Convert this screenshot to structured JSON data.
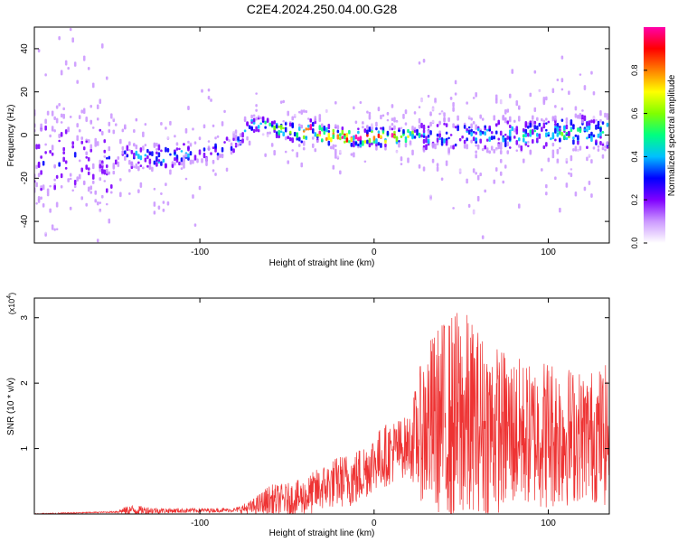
{
  "title": "C2E4.2024.250.04.00.G28",
  "chart_data": [
    {
      "type": "heatmap",
      "xlabel": "Height of straight line (km)",
      "ylabel": "Frequency (Hz)",
      "xlim": [
        -195,
        135
      ],
      "ylim": [
        -50,
        50
      ],
      "xticks": [
        -100,
        0,
        100
      ],
      "yticks": [
        -40,
        -20,
        0,
        20,
        40
      ],
      "colorbar": {
        "label": "Normalized spectral amplitude",
        "range": [
          0,
          1
        ],
        "ticks": [
          "0.0",
          "0.2",
          "0.4",
          "0.6",
          "0.8"
        ],
        "colors": [
          "#ffffff",
          "#cc99ff",
          "#8000ff",
          "#0000ff",
          "#00c0ff",
          "#00ff80",
          "#80ff00",
          "#ffff00",
          "#ff8000",
          "#ff0000",
          "#ff00aa"
        ]
      },
      "ridge": {
        "x": [
          -145,
          -120,
          -100,
          -80,
          -70,
          -60,
          -50,
          -42,
          -36,
          -30,
          -20,
          -10,
          0,
          10,
          20,
          30,
          50,
          80,
          110,
          135
        ],
        "y": [
          -10,
          -11,
          -8,
          -5,
          5,
          4,
          2,
          0,
          4,
          0,
          -1,
          -1,
          -1,
          -1,
          0,
          -1,
          0,
          0,
          1,
          1
        ],
        "peak_amplitude": [
          0.35,
          0.4,
          0.3,
          0.3,
          0.55,
          0.55,
          0.6,
          0.85,
          0.85,
          0.9,
          0.95,
          0.95,
          0.95,
          0.9,
          0.6,
          0.35,
          0.4,
          0.4,
          0.5,
          0.5
        ]
      }
    },
    {
      "type": "line",
      "xlabel": "Height of straight line (km)",
      "ylabel": "SNR (10 * v/v)",
      "ylabel_multiplier": "(x10",
      "ylabel_multiplier_exp": "4",
      "ylabel_multiplier_close": ")",
      "xlim": [
        -195,
        135
      ],
      "ylim": [
        0,
        3.3
      ],
      "xticks": [
        -100,
        0,
        100
      ],
      "yticks": [
        1,
        2,
        3
      ],
      "series": [
        {
          "color": "#ee3333",
          "envelope": {
            "x": [
              -195,
              -150,
              -140,
              -120,
              -80,
              -70,
              -60,
              -50,
              -40,
              -30,
              -20,
              -10,
              0,
              10,
              20,
              25,
              30,
              40,
              50,
              60,
              70,
              80,
              90,
              100,
              110,
              120,
              135
            ],
            "mean": [
              0.0,
              0.03,
              0.06,
              0.05,
              0.06,
              0.1,
              0.2,
              0.22,
              0.25,
              0.4,
              0.5,
              0.55,
              0.8,
              0.95,
              1.05,
              1.2,
              1.35,
              1.4,
              1.4,
              1.35,
              1.3,
              1.25,
              1.2,
              1.25,
              1.2,
              1.2,
              1.2
            ],
            "spread": [
              0.01,
              0.01,
              0.08,
              0.04,
              0.03,
              0.12,
              0.25,
              0.25,
              0.3,
              0.35,
              0.4,
              0.45,
              0.45,
              0.5,
              0.45,
              0.9,
              1.3,
              1.6,
              1.8,
              1.5,
              1.3,
              1.2,
              1.1,
              1.2,
              1.1,
              1.0,
              1.1
            ]
          }
        }
      ]
    }
  ]
}
